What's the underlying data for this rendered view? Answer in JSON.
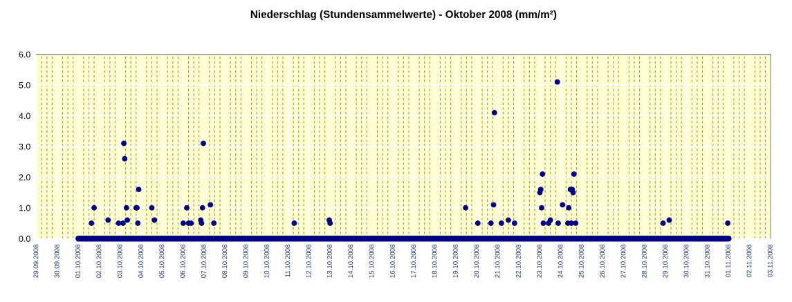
{
  "chart_data": {
    "type": "scatter",
    "title": "Niederschlag (Stundensammelwerte) - Oktober 2008 (mm/m²)",
    "series": [
      {
        "type": "line",
        "color": "#000080",
        "x": [
          "2008-10-01T00:00",
          "2008-11-01T00:00"
        ],
        "values": [
          0.0,
          0.0
        ]
      },
      {
        "color": "#000080",
        "marker": "circle",
        "x": [
          "2008-10-01T15:00",
          "2008-10-01T18:00",
          "2008-10-02T10:00",
          "2008-10-02T22:00",
          "2008-10-03T03:00",
          "2008-10-03T04:00",
          "2008-10-03T05:00",
          "2008-10-03T07:00",
          "2008-10-03T08:00",
          "2008-10-03T18:00",
          "2008-10-03T19:00",
          "2008-10-03T20:00",
          "2008-10-03T21:00",
          "2008-10-04T12:00",
          "2008-10-04T15:00",
          "2008-10-06T00:00",
          "2008-10-06T04:00",
          "2008-10-06T06:00",
          "2008-10-06T09:00",
          "2008-10-06T20:00",
          "2008-10-06T21:00",
          "2008-10-06T22:00",
          "2008-10-06T23:00",
          "2008-10-07T07:00",
          "2008-10-07T11:00",
          "2008-10-11T07:00",
          "2008-10-12T23:00",
          "2008-10-13T00:00",
          "2008-10-19T11:00",
          "2008-10-20T01:00",
          "2008-10-20T16:00",
          "2008-10-20T19:00",
          "2008-10-20T20:00",
          "2008-10-21T04:00",
          "2008-10-21T12:00",
          "2008-10-21T19:00",
          "2008-10-23T00:00",
          "2008-10-23T01:00",
          "2008-10-23T02:00",
          "2008-10-23T03:00",
          "2008-10-23T04:00",
          "2008-10-23T10:00",
          "2008-10-23T12:00",
          "2008-10-23T20:00",
          "2008-10-23T21:00",
          "2008-10-24T02:00",
          "2008-10-24T08:00",
          "2008-10-24T09:00",
          "2008-10-24T11:00",
          "2008-10-24T12:00",
          "2008-10-24T13:00",
          "2008-10-24T14:00",
          "2008-10-24T15:00",
          "2008-10-24T17:00",
          "2008-10-28T21:00",
          "2008-10-29T04:00",
          "2008-10-31T23:00"
        ],
        "values": [
          0.5,
          1.0,
          0.6,
          0.5,
          0.5,
          3.1,
          2.6,
          1.0,
          0.6,
          1.0,
          1.0,
          0.5,
          1.6,
          1.0,
          0.6,
          0.5,
          1.0,
          0.5,
          0.5,
          0.6,
          0.5,
          1.0,
          3.1,
          1.1,
          0.5,
          0.5,
          0.6,
          0.5,
          1.0,
          0.5,
          0.5,
          1.1,
          4.1,
          0.5,
          0.6,
          0.5,
          1.5,
          1.6,
          1.0,
          2.1,
          0.5,
          0.5,
          0.6,
          5.1,
          0.5,
          1.1,
          0.5,
          1.0,
          1.6,
          0.5,
          1.6,
          1.5,
          2.1,
          0.5,
          0.5,
          0.6,
          0.5
        ]
      }
    ],
    "xlim": [
      "2008-09-29T00:00",
      "2008-11-03T00:00"
    ],
    "xticks": [
      {
        "value": "2008-09-29",
        "label": "29.09.2008"
      },
      {
        "value": "2008-09-30",
        "label": "30.09.2008"
      },
      {
        "value": "2008-10-01",
        "label": "01.10.2008"
      },
      {
        "value": "2008-10-02",
        "label": "02.10.2008"
      },
      {
        "value": "2008-10-03",
        "label": "03.10.2008"
      },
      {
        "value": "2008-10-04",
        "label": "04.10.2008"
      },
      {
        "value": "2008-10-05",
        "label": "05.10.2008"
      },
      {
        "value": "2008-10-06",
        "label": "06.10.2008"
      },
      {
        "value": "2008-10-07",
        "label": "07.10.2008"
      },
      {
        "value": "2008-10-08",
        "label": "08.10.2008"
      },
      {
        "value": "2008-10-09",
        "label": "09.10.2008"
      },
      {
        "value": "2008-10-10",
        "label": "10.10.2008"
      },
      {
        "value": "2008-10-11",
        "label": "11.10.2008"
      },
      {
        "value": "2008-10-12",
        "label": "12.10.2008"
      },
      {
        "value": "2008-10-13",
        "label": "13.10.2008"
      },
      {
        "value": "2008-10-14",
        "label": "14.10.2008"
      },
      {
        "value": "2008-10-15",
        "label": "15.10.2008"
      },
      {
        "value": "2008-10-16",
        "label": "16.10.2008"
      },
      {
        "value": "2008-10-17",
        "label": "17.10.2008"
      },
      {
        "value": "2008-10-18",
        "label": "18.10.2008"
      },
      {
        "value": "2008-10-19",
        "label": "19.10.2008"
      },
      {
        "value": "2008-10-20",
        "label": "20.10.2008"
      },
      {
        "value": "2008-10-21",
        "label": "21.10.2008"
      },
      {
        "value": "2008-10-22",
        "label": "22.10.2008"
      },
      {
        "value": "2008-10-23",
        "label": "23.10.2008"
      },
      {
        "value": "2008-10-24",
        "label": "24.10.2008"
      },
      {
        "value": "2008-10-25",
        "label": "25.10.2008"
      },
      {
        "value": "2008-10-26",
        "label": "26.10.2008"
      },
      {
        "value": "2008-10-27",
        "label": "27.10.2008"
      },
      {
        "value": "2008-10-28",
        "label": "28.10.2008"
      },
      {
        "value": "2008-10-29",
        "label": "29.10.2008"
      },
      {
        "value": "2008-10-30",
        "label": "30.10.2008"
      },
      {
        "value": "2008-10-31",
        "label": "31.10.2008"
      },
      {
        "value": "2008-11-01",
        "label": "01.11.2008"
      },
      {
        "value": "2008-11-02",
        "label": "02.11.2008"
      },
      {
        "value": "2008-11-03",
        "label": "03.11.2008"
      }
    ],
    "ylim": [
      0,
      6
    ],
    "yticks": [
      {
        "value": 0,
        "label": "0.0"
      },
      {
        "value": 1,
        "label": "1.0"
      },
      {
        "value": 2,
        "label": "2.0"
      },
      {
        "value": 3,
        "label": "3.0"
      },
      {
        "value": 4,
        "label": "4.0"
      },
      {
        "value": 5,
        "label": "5.0"
      },
      {
        "value": 6,
        "label": "6.0"
      }
    ],
    "grid": true,
    "legend": false
  }
}
